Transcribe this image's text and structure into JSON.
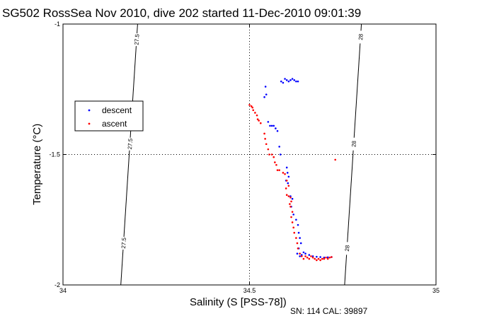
{
  "chart_data": {
    "type": "scatter",
    "title": "SG502 RossSea Nov 2010, dive 202 started 11-Dec-2010 09:01:39",
    "xlabel": "Salinity (S [PSS-78])",
    "ylabel": "Temperature (°C)",
    "footer": "SN: 114  CAL: 39897",
    "xlim": [
      34,
      35
    ],
    "ylim": [
      -2,
      -1
    ],
    "xticks": [
      34,
      34.5,
      35
    ],
    "yticks": [
      -2,
      -1.5,
      -1
    ],
    "xtick_labels": [
      "34",
      "34.5",
      "35"
    ],
    "ytick_labels": [
      "-2",
      "-1.5",
      "-1"
    ],
    "grid": "dotted",
    "legend_position": "left",
    "series": [
      {
        "name": "descent",
        "color": "#0000ff",
        "points": [
          [
            34.595,
            -1.21
          ],
          [
            34.6,
            -1.215
          ],
          [
            34.605,
            -1.22
          ],
          [
            34.61,
            -1.215
          ],
          [
            34.615,
            -1.21
          ],
          [
            34.62,
            -1.215
          ],
          [
            34.625,
            -1.22
          ],
          [
            34.63,
            -1.22
          ],
          [
            34.585,
            -1.22
          ],
          [
            34.59,
            -1.225
          ],
          [
            34.543,
            -1.24
          ],
          [
            34.545,
            -1.27
          ],
          [
            34.54,
            -1.28
          ],
          [
            34.55,
            -1.375
          ],
          [
            34.555,
            -1.39
          ],
          [
            34.56,
            -1.39
          ],
          [
            34.565,
            -1.39
          ],
          [
            34.57,
            -1.4
          ],
          [
            34.575,
            -1.41
          ],
          [
            34.58,
            -1.47
          ],
          [
            34.583,
            -1.5
          ],
          [
            34.6,
            -1.55
          ],
          [
            34.602,
            -1.57
          ],
          [
            34.605,
            -1.585
          ],
          [
            34.598,
            -1.6
          ],
          [
            34.603,
            -1.61
          ],
          [
            34.61,
            -1.66
          ],
          [
            34.615,
            -1.67
          ],
          [
            34.612,
            -1.7
          ],
          [
            34.618,
            -1.73
          ],
          [
            34.625,
            -1.75
          ],
          [
            34.63,
            -1.77
          ],
          [
            34.632,
            -1.8
          ],
          [
            34.635,
            -1.82
          ],
          [
            34.638,
            -1.84
          ],
          [
            34.632,
            -1.86
          ],
          [
            34.628,
            -1.88
          ],
          [
            34.635,
            -1.89
          ],
          [
            34.64,
            -1.885
          ],
          [
            34.645,
            -1.875
          ],
          [
            34.65,
            -1.88
          ],
          [
            34.66,
            -1.885
          ],
          [
            34.67,
            -1.89
          ],
          [
            34.68,
            -1.892
          ],
          [
            34.69,
            -1.893
          ],
          [
            34.7,
            -1.895
          ],
          [
            34.71,
            -1.894
          ],
          [
            34.72,
            -1.893
          ]
        ]
      },
      {
        "name": "ascent",
        "color": "#ff0000",
        "points": [
          [
            34.5,
            -1.31
          ],
          [
            34.505,
            -1.315
          ],
          [
            34.508,
            -1.32
          ],
          [
            34.51,
            -1.33
          ],
          [
            34.515,
            -1.34
          ],
          [
            34.52,
            -1.35
          ],
          [
            34.522,
            -1.365
          ],
          [
            34.525,
            -1.37
          ],
          [
            34.53,
            -1.38
          ],
          [
            34.54,
            -1.42
          ],
          [
            34.542,
            -1.44
          ],
          [
            34.545,
            -1.46
          ],
          [
            34.55,
            -1.48
          ],
          [
            34.553,
            -1.5
          ],
          [
            34.56,
            -1.5
          ],
          [
            34.565,
            -1.51
          ],
          [
            34.568,
            -1.53
          ],
          [
            34.572,
            -1.54
          ],
          [
            34.575,
            -1.56
          ],
          [
            34.58,
            -1.56
          ],
          [
            34.59,
            -1.57
          ],
          [
            34.595,
            -1.575
          ],
          [
            34.6,
            -1.6
          ],
          [
            34.605,
            -1.62
          ],
          [
            34.598,
            -1.63
          ],
          [
            34.6,
            -1.655
          ],
          [
            34.605,
            -1.66
          ],
          [
            34.61,
            -1.665
          ],
          [
            34.612,
            -1.68
          ],
          [
            34.608,
            -1.69
          ],
          [
            34.61,
            -1.7
          ],
          [
            34.615,
            -1.72
          ],
          [
            34.612,
            -1.74
          ],
          [
            34.615,
            -1.76
          ],
          [
            34.618,
            -1.78
          ],
          [
            34.62,
            -1.8
          ],
          [
            34.625,
            -1.82
          ],
          [
            34.628,
            -1.84
          ],
          [
            34.63,
            -1.86
          ],
          [
            34.635,
            -1.88
          ],
          [
            34.64,
            -1.89
          ],
          [
            34.645,
            -1.9
          ],
          [
            34.65,
            -1.89
          ],
          [
            34.655,
            -1.895
          ],
          [
            34.66,
            -1.9
          ],
          [
            34.665,
            -1.89
          ],
          [
            34.67,
            -1.895
          ],
          [
            34.675,
            -1.9
          ],
          [
            34.68,
            -1.905
          ],
          [
            34.685,
            -1.9
          ],
          [
            34.69,
            -1.905
          ],
          [
            34.695,
            -1.9
          ],
          [
            34.7,
            -1.9
          ],
          [
            34.705,
            -1.895
          ],
          [
            34.71,
            -1.9
          ],
          [
            34.715,
            -1.895
          ],
          [
            34.72,
            -1.893
          ],
          [
            34.73,
            -1.52
          ]
        ]
      }
    ],
    "contours": [
      {
        "label": "27.5",
        "from": [
          34.2,
          -1
        ],
        "to": [
          34.155,
          -2
        ],
        "label_y": [
          -1.06,
          -1.46,
          -1.84
        ]
      },
      {
        "label": "28",
        "from": [
          34.8,
          -1
        ],
        "to": [
          34.755,
          -2
        ],
        "label_y": [
          -1.05,
          -1.46,
          -1.86
        ]
      }
    ]
  }
}
